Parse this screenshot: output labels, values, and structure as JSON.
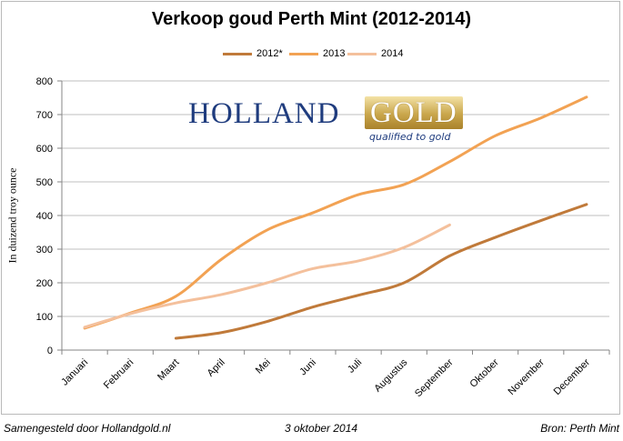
{
  "chart_data": {
    "type": "line",
    "title": "Verkoop goud Perth Mint (2012-2014)",
    "ylabel": "In duizend troy ounce",
    "xlabel": "",
    "ylim": [
      0,
      800
    ],
    "yticks": [
      0,
      100,
      200,
      300,
      400,
      500,
      600,
      700,
      800
    ],
    "categories": [
      "Januari",
      "Februari",
      "Maart",
      "April",
      "Mei",
      "Juni",
      "Juli",
      "Augustus",
      "September",
      "Oktober",
      "November",
      "December"
    ],
    "legend_position": "top-center",
    "series": [
      {
        "name": "2012*",
        "color": "#c07a3a",
        "values": [
          null,
          null,
          35,
          52,
          85,
          128,
          163,
          200,
          280,
          335,
          385,
          433
        ]
      },
      {
        "name": "2013",
        "color": "#f2a253",
        "values": [
          65,
          110,
          160,
          270,
          357,
          408,
          462,
          492,
          560,
          637,
          690,
          752
        ]
      },
      {
        "name": "2014",
        "color": "#f4c09c",
        "values": [
          68,
          108,
          140,
          165,
          200,
          242,
          265,
          305,
          372,
          null,
          null,
          null
        ]
      }
    ]
  },
  "logo": {
    "word1": "HOLLAND",
    "word2": "GOLD",
    "tagline": "qualified to gold"
  },
  "footer": {
    "left": "Samengesteld door Hollandgold.nl",
    "date": "3 oktober 2014",
    "right": "Bron: Perth Mint"
  }
}
